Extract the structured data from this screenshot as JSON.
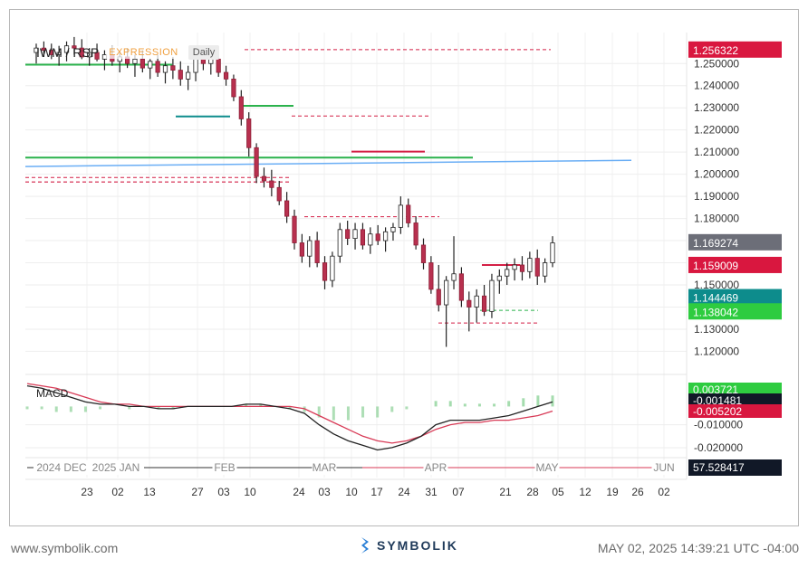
{
  "header": {
    "symbol": "IWM / RSP",
    "mode_badge": "EXPRESSION",
    "interval_badge": "Daily"
  },
  "macd_label": "MACD",
  "footer": {
    "website": "www.symbolik.com",
    "brand": "SYMBOLIK",
    "timestamp": "MAY 02, 2025 14:39:21 UTC -04:00"
  },
  "colors": {
    "up": "#2bb24c",
    "down": "#d41f45",
    "wick": "#222222",
    "tag_red": "#d9173f",
    "tag_gray": "#6c6e78",
    "tag_teal": "#0d8c8c",
    "tag_green": "#2ecc40",
    "tag_black": "#111827",
    "macd_line": "#222222",
    "signal_line": "#d83a56",
    "blue_line": "#6aaef5"
  },
  "chart_data": [
    {
      "type": "candlestick",
      "title": "IWM / RSP",
      "ylim": [
        1.112,
        1.264
      ],
      "y_ticks": [
        "1.250000",
        "1.240000",
        "1.230000",
        "1.220000",
        "1.210000",
        "1.200000",
        "1.190000",
        "1.180000",
        "1.170000",
        "1.160000",
        "1.150000",
        "1.140000",
        "1.130000",
        "1.120000"
      ],
      "x_ticks": [
        "23",
        "02",
        "13",
        "27",
        "03",
        "10",
        "24",
        "03",
        "10",
        "17",
        "24",
        "31",
        "07",
        "21",
        "28",
        "05",
        "12",
        "19",
        "26",
        "02"
      ],
      "price_tags": [
        {
          "text": "1.256322",
          "color": "tag_red",
          "value": 1.256322
        },
        {
          "text": "1.169274",
          "color": "tag_gray",
          "value": 1.169274
        },
        {
          "text": "1.159009",
          "color": "tag_red",
          "value": 1.159009
        },
        {
          "text": "1.144469",
          "color": "tag_teal",
          "value": 1.144469
        },
        {
          "text": "1.138042",
          "color": "tag_green",
          "value": 1.138042
        }
      ],
      "candles": [
        [
          1.255,
          1.259,
          1.25,
          1.257
        ],
        [
          1.257,
          1.26,
          1.253,
          1.256
        ],
        [
          1.256,
          1.259,
          1.252,
          1.254
        ],
        [
          1.254,
          1.258,
          1.249,
          1.255
        ],
        [
          1.255,
          1.26,
          1.251,
          1.258
        ],
        [
          1.258,
          1.262,
          1.254,
          1.257
        ],
        [
          1.257,
          1.261,
          1.252,
          1.253
        ],
        [
          1.253,
          1.257,
          1.249,
          1.255
        ],
        [
          1.255,
          1.259,
          1.251,
          1.252
        ],
        [
          1.252,
          1.256,
          1.247,
          1.254
        ],
        [
          1.254,
          1.258,
          1.249,
          1.251
        ],
        [
          1.251,
          1.255,
          1.246,
          1.253
        ],
        [
          1.253,
          1.257,
          1.248,
          1.25
        ],
        [
          1.25,
          1.254,
          1.244,
          1.252
        ],
        [
          1.252,
          1.256,
          1.246,
          1.248
        ],
        [
          1.248,
          1.252,
          1.243,
          1.251
        ],
        [
          1.251,
          1.254,
          1.244,
          1.246
        ],
        [
          1.246,
          1.251,
          1.241,
          1.249
        ],
        [
          1.249,
          1.253,
          1.243,
          1.247
        ],
        [
          1.247,
          1.251,
          1.24,
          1.243
        ],
        [
          1.243,
          1.249,
          1.238,
          1.246
        ],
        [
          1.246,
          1.258,
          1.242,
          1.255
        ],
        [
          1.255,
          1.258,
          1.247,
          1.25
        ],
        [
          1.25,
          1.254,
          1.245,
          1.252
        ],
        [
          1.252,
          1.255,
          1.244,
          1.246
        ],
        [
          1.246,
          1.249,
          1.24,
          1.243
        ],
        [
          1.243,
          1.245,
          1.233,
          1.235
        ],
        [
          1.235,
          1.238,
          1.222,
          1.225
        ],
        [
          1.225,
          1.228,
          1.208,
          1.212
        ],
        [
          1.212,
          1.214,
          1.196,
          1.199
        ],
        [
          1.199,
          1.203,
          1.194,
          1.197
        ],
        [
          1.197,
          1.202,
          1.19,
          1.194
        ],
        [
          1.194,
          1.197,
          1.186,
          1.188
        ],
        [
          1.188,
          1.192,
          1.178,
          1.181
        ],
        [
          1.181,
          1.184,
          1.166,
          1.169
        ],
        [
          1.169,
          1.173,
          1.16,
          1.163
        ],
        [
          1.163,
          1.172,
          1.158,
          1.17
        ],
        [
          1.17,
          1.174,
          1.158,
          1.16
        ],
        [
          1.16,
          1.163,
          1.148,
          1.152
        ],
        [
          1.152,
          1.165,
          1.149,
          1.163
        ],
        [
          1.163,
          1.178,
          1.16,
          1.175
        ],
        [
          1.175,
          1.179,
          1.168,
          1.171
        ],
        [
          1.171,
          1.178,
          1.166,
          1.175
        ],
        [
          1.175,
          1.178,
          1.166,
          1.168
        ],
        [
          1.168,
          1.176,
          1.164,
          1.173
        ],
        [
          1.173,
          1.177,
          1.168,
          1.17
        ],
        [
          1.17,
          1.176,
          1.165,
          1.174
        ],
        [
          1.174,
          1.178,
          1.17,
          1.176
        ],
        [
          1.176,
          1.19,
          1.173,
          1.186
        ],
        [
          1.186,
          1.189,
          1.176,
          1.178
        ],
        [
          1.178,
          1.181,
          1.166,
          1.168
        ],
        [
          1.168,
          1.171,
          1.157,
          1.16
        ],
        [
          1.16,
          1.163,
          1.146,
          1.148
        ],
        [
          1.148,
          1.159,
          1.138,
          1.141
        ],
        [
          1.141,
          1.154,
          1.122,
          1.152
        ],
        [
          1.152,
          1.172,
          1.148,
          1.155
        ],
        [
          1.155,
          1.158,
          1.14,
          1.143
        ],
        [
          1.143,
          1.147,
          1.129,
          1.14
        ],
        [
          1.14,
          1.148,
          1.133,
          1.145
        ],
        [
          1.145,
          1.15,
          1.136,
          1.138
        ],
        [
          1.138,
          1.155,
          1.135,
          1.152
        ],
        [
          1.152,
          1.157,
          1.146,
          1.154
        ],
        [
          1.154,
          1.16,
          1.15,
          1.157
        ],
        [
          1.157,
          1.162,
          1.152,
          1.159
        ],
        [
          1.159,
          1.163,
          1.152,
          1.156
        ],
        [
          1.156,
          1.165,
          1.153,
          1.162
        ],
        [
          1.162,
          1.166,
          1.15,
          1.154
        ],
        [
          1.154,
          1.162,
          1.151,
          1.16
        ],
        [
          1.16,
          1.172,
          1.158,
          1.169
        ]
      ]
    },
    {
      "type": "line",
      "title": "MACD",
      "ylim": [
        -0.022,
        0.012
      ],
      "y_ticks": [
        "-0.010000",
        "-0.020000"
      ],
      "values_tags": [
        {
          "text": "0.003721",
          "color": "tag_green",
          "value": 0.003721
        },
        {
          "text": "-0.001481",
          "color": "tag_black",
          "value": -0.001481
        },
        {
          "text": "-0.005202",
          "color": "tag_red",
          "value": -0.005202
        }
      ],
      "series": [
        {
          "name": "MACD",
          "values": [
            0.007,
            0.006,
            0.004,
            0.002,
            0.0,
            -0.001,
            -0.001,
            -0.002,
            -0.002,
            -0.003,
            -0.003,
            -0.002,
            -0.002,
            -0.002,
            -0.002,
            -0.001,
            -0.001,
            -0.002,
            -0.003,
            -0.005,
            -0.01,
            -0.014,
            -0.017,
            -0.019,
            -0.021,
            -0.02,
            -0.018,
            -0.015,
            -0.01,
            -0.008,
            -0.008,
            -0.008,
            -0.007,
            -0.006,
            -0.004,
            -0.002,
            0.0
          ]
        },
        {
          "name": "Signal",
          "values": [
            0.008,
            0.007,
            0.006,
            0.004,
            0.002,
            0.0,
            -0.001,
            -0.001,
            -0.002,
            -0.002,
            -0.002,
            -0.002,
            -0.002,
            -0.002,
            -0.002,
            -0.002,
            -0.002,
            -0.002,
            -0.002,
            -0.003,
            -0.006,
            -0.009,
            -0.012,
            -0.015,
            -0.017,
            -0.018,
            -0.017,
            -0.015,
            -0.012,
            -0.01,
            -0.009,
            -0.009,
            -0.008,
            -0.008,
            -0.007,
            -0.006,
            -0.004
          ]
        }
      ]
    },
    {
      "type": "line",
      "title": "",
      "month_labels": [
        "2024 DEC",
        "2025 JAN",
        "FEB",
        "MAR",
        "APR",
        "MAY",
        "JUN"
      ],
      "value_tag": {
        "text": "57.528417",
        "color": "tag_black",
        "value": 57.528417
      }
    }
  ]
}
